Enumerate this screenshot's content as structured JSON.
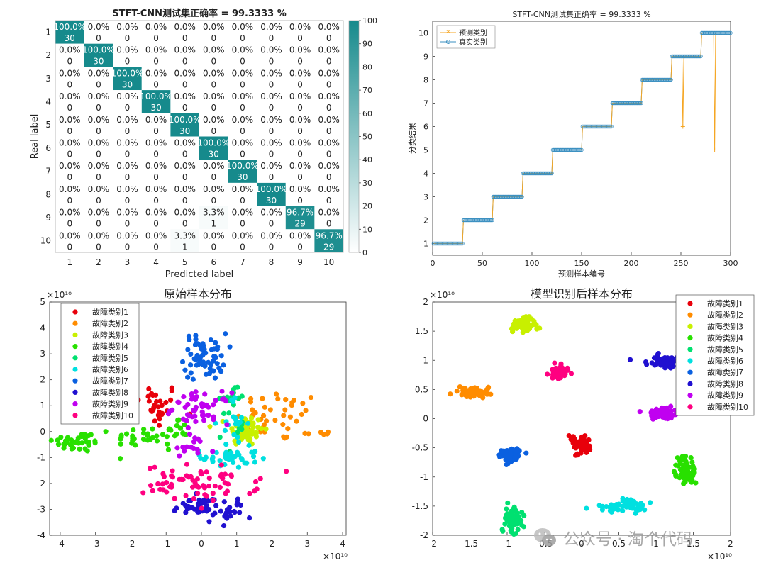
{
  "watermark": {
    "text": "公众号 · 淘个代码",
    "icon": "wechat-icon"
  },
  "chart_data": [
    {
      "type": "heatmap",
      "title": "STFT-CNN测试集正确率 = 99.3333 %",
      "xlabel": "Predicted label",
      "ylabel": "Real label",
      "categories": [
        "1",
        "2",
        "3",
        "4",
        "5",
        "6",
        "7",
        "8",
        "9",
        "10"
      ],
      "counts": [
        [
          30,
          0,
          0,
          0,
          0,
          0,
          0,
          0,
          0,
          0
        ],
        [
          0,
          30,
          0,
          0,
          0,
          0,
          0,
          0,
          0,
          0
        ],
        [
          0,
          0,
          30,
          0,
          0,
          0,
          0,
          0,
          0,
          0
        ],
        [
          0,
          0,
          0,
          30,
          0,
          0,
          0,
          0,
          0,
          0
        ],
        [
          0,
          0,
          0,
          0,
          30,
          0,
          0,
          0,
          0,
          0
        ],
        [
          0,
          0,
          0,
          0,
          0,
          30,
          0,
          0,
          0,
          0
        ],
        [
          0,
          0,
          0,
          0,
          0,
          0,
          30,
          0,
          0,
          0
        ],
        [
          0,
          0,
          0,
          0,
          0,
          0,
          0,
          30,
          0,
          0
        ],
        [
          0,
          0,
          0,
          0,
          0,
          1,
          0,
          0,
          29,
          0
        ],
        [
          0,
          0,
          0,
          0,
          1,
          0,
          0,
          0,
          0,
          29
        ]
      ],
      "percents": [
        [
          "100.0%",
          "0.0%",
          "0.0%",
          "0.0%",
          "0.0%",
          "0.0%",
          "0.0%",
          "0.0%",
          "0.0%",
          "0.0%"
        ],
        [
          "0.0%",
          "100.0%",
          "0.0%",
          "0.0%",
          "0.0%",
          "0.0%",
          "0.0%",
          "0.0%",
          "0.0%",
          "0.0%"
        ],
        [
          "0.0%",
          "0.0%",
          "100.0%",
          "0.0%",
          "0.0%",
          "0.0%",
          "0.0%",
          "0.0%",
          "0.0%",
          "0.0%"
        ],
        [
          "0.0%",
          "0.0%",
          "0.0%",
          "100.0%",
          "0.0%",
          "0.0%",
          "0.0%",
          "0.0%",
          "0.0%",
          "0.0%"
        ],
        [
          "0.0%",
          "0.0%",
          "0.0%",
          "0.0%",
          "100.0%",
          "0.0%",
          "0.0%",
          "0.0%",
          "0.0%",
          "0.0%"
        ],
        [
          "0.0%",
          "0.0%",
          "0.0%",
          "0.0%",
          "0.0%",
          "100.0%",
          "0.0%",
          "0.0%",
          "0.0%",
          "0.0%"
        ],
        [
          "0.0%",
          "0.0%",
          "0.0%",
          "0.0%",
          "0.0%",
          "0.0%",
          "100.0%",
          "0.0%",
          "0.0%",
          "0.0%"
        ],
        [
          "0.0%",
          "0.0%",
          "0.0%",
          "0.0%",
          "0.0%",
          "0.0%",
          "0.0%",
          "100.0%",
          "0.0%",
          "0.0%"
        ],
        [
          "0.0%",
          "0.0%",
          "0.0%",
          "0.0%",
          "0.0%",
          "3.3%",
          "0.0%",
          "0.0%",
          "96.7%",
          "0.0%"
        ],
        [
          "0.0%",
          "0.0%",
          "0.0%",
          "0.0%",
          "3.3%",
          "0.0%",
          "0.0%",
          "0.0%",
          "0.0%",
          "96.7%"
        ]
      ],
      "colorbar": {
        "min": 0,
        "max": 100,
        "ticks": [
          0,
          10,
          20,
          30,
          40,
          50,
          60,
          70,
          80,
          90,
          100
        ]
      },
      "color_high": "#168a8c",
      "color_low": "#ffffff"
    },
    {
      "type": "line",
      "title": "STFT-CNN测试集正确率 = 99.3333 %",
      "xlabel": "预测样本编号",
      "ylabel": "分类结果",
      "xlim": [
        0,
        300
      ],
      "ylim": [
        0.5,
        10.5
      ],
      "xticks": [
        0,
        50,
        100,
        150,
        200,
        250,
        300
      ],
      "yticks": [
        1,
        2,
        3,
        4,
        5,
        6,
        7,
        8,
        9,
        10
      ],
      "legend_position": "top-left",
      "series": [
        {
          "name": "预测类别",
          "color": "#f5a623",
          "marker": "*",
          "steps": [
            1,
            2,
            3,
            4,
            5,
            6,
            7,
            8,
            9,
            10
          ],
          "samples_per_class": 30,
          "errors": [
            {
              "x": 252,
              "y": 6
            },
            {
              "x": 284,
              "y": 5
            }
          ]
        },
        {
          "name": "真实类别",
          "color": "#3a8fc0",
          "marker": "o",
          "steps": [
            1,
            2,
            3,
            4,
            5,
            6,
            7,
            8,
            9,
            10
          ],
          "samples_per_class": 30
        }
      ]
    },
    {
      "type": "scatter",
      "title": "原始样本分布",
      "xlim": [
        -4.3,
        4.1
      ],
      "ylim": [
        -4,
        5
      ],
      "xticks": [
        -4,
        -3,
        -2,
        -1,
        0,
        1,
        2,
        3,
        4
      ],
      "yticks": [
        -4,
        -3,
        -2,
        -1,
        0,
        1,
        2,
        3,
        4,
        5
      ],
      "exponent": "×10¹⁰",
      "legend_position": "top-left",
      "series": [
        {
          "name": "故障类别1",
          "color": "#e8000b",
          "clusters": [
            {
              "cx": -1.3,
              "cy": 1.0,
              "sx": 0.35,
              "sy": 0.45,
              "n": 30
            }
          ]
        },
        {
          "name": "故障类别2",
          "color": "#ff8c00",
          "clusters": [
            {
              "cx": 2.2,
              "cy": 0.6,
              "sx": 0.6,
              "sy": 0.5,
              "n": 40
            },
            {
              "cx": 3.3,
              "cy": -0.05,
              "sx": 0.2,
              "sy": 0.05,
              "n": 6
            }
          ]
        },
        {
          "name": "故障类别3",
          "color": "#c8f000",
          "clusters": [
            {
              "cx": 1.25,
              "cy": 0.05,
              "sx": 0.25,
              "sy": 0.3,
              "n": 60
            }
          ]
        },
        {
          "name": "故障类别4",
          "color": "#28e000",
          "clusters": [
            {
              "cx": -3.5,
              "cy": -0.4,
              "sx": 0.35,
              "sy": 0.2,
              "n": 40
            },
            {
              "cx": -1.6,
              "cy": -0.2,
              "sx": 0.45,
              "sy": 0.2,
              "n": 30
            },
            {
              "cx": -0.7,
              "cy": 0.0,
              "sx": 0.15,
              "sy": 0.3,
              "n": 15
            }
          ]
        },
        {
          "name": "故障类别5",
          "color": "#00e070",
          "clusters": [
            {
              "cx": 0.8,
              "cy": 1.35,
              "sx": 0.25,
              "sy": 0.15,
              "n": 15
            },
            {
              "cx": 0.9,
              "cy": 0.2,
              "sx": 0.15,
              "sy": 0.5,
              "n": 10
            }
          ]
        },
        {
          "name": "故障类别6",
          "color": "#00e0e0",
          "clusters": [
            {
              "cx": 0.8,
              "cy": -1.0,
              "sx": 0.4,
              "sy": 0.2,
              "n": 40
            },
            {
              "cx": 0.9,
              "cy": 0.3,
              "sx": 0.2,
              "sy": 0.5,
              "n": 20
            }
          ]
        },
        {
          "name": "故障类别7",
          "color": "#0a60e0",
          "clusters": [
            {
              "cx": 0.1,
              "cy": 2.9,
              "sx": 0.3,
              "sy": 0.45,
              "n": 60
            }
          ]
        },
        {
          "name": "故障类别8",
          "color": "#2010d0",
          "clusters": [
            {
              "cx": -0.1,
              "cy": -2.9,
              "sx": 0.35,
              "sy": 0.2,
              "n": 40
            },
            {
              "cx": 0.8,
              "cy": -3.05,
              "sx": 0.2,
              "sy": 0.25,
              "n": 20
            }
          ]
        },
        {
          "name": "故障类别9",
          "color": "#c000f0",
          "clusters": [
            {
              "cx": 0.0,
              "cy": 0.9,
              "sx": 0.4,
              "sy": 0.3,
              "n": 50
            },
            {
              "cx": -0.3,
              "cy": -0.7,
              "sx": 0.35,
              "sy": 0.3,
              "n": 15
            }
          ]
        },
        {
          "name": "故障类别10",
          "color": "#ff0080",
          "clusters": [
            {
              "cx": 0.0,
              "cy": -2.0,
              "sx": 0.8,
              "sy": 0.35,
              "n": 70
            }
          ]
        }
      ]
    },
    {
      "type": "scatter",
      "title": "模型识别后样本分布",
      "xlim": [
        -2,
        2
      ],
      "ylim": [
        -2,
        2
      ],
      "xticks": [
        -2,
        -1.5,
        -1,
        -0.5,
        0,
        0.5,
        1,
        1.5,
        2
      ],
      "yticks": [
        -2,
        -1.5,
        -1,
        -0.5,
        0,
        0.5,
        1,
        1.5,
        2
      ],
      "exponent": "×10¹⁰",
      "legend_position": "top-right",
      "series": [
        {
          "name": "故障类别1",
          "color": "#e8000b",
          "clusters": [
            {
              "cx": -0.02,
              "cy": -0.45,
              "sx": 0.06,
              "sy": 0.08,
              "n": 60
            }
          ]
        },
        {
          "name": "故障类别2",
          "color": "#ff8c00",
          "clusters": [
            {
              "cx": -1.45,
              "cy": 0.45,
              "sx": 0.12,
              "sy": 0.04,
              "n": 60
            }
          ]
        },
        {
          "name": "故障类别3",
          "color": "#c8f000",
          "clusters": [
            {
              "cx": -0.8,
              "cy": 1.6,
              "sx": 0.08,
              "sy": 0.06,
              "n": 60
            }
          ]
        },
        {
          "name": "故障类别4",
          "color": "#28e000",
          "clusters": [
            {
              "cx": 1.38,
              "cy": -0.9,
              "sx": 0.08,
              "sy": 0.12,
              "n": 60
            }
          ]
        },
        {
          "name": "故障类别5",
          "color": "#00e070",
          "clusters": [
            {
              "cx": -0.9,
              "cy": -1.72,
              "sx": 0.07,
              "sy": 0.12,
              "n": 60
            }
          ]
        },
        {
          "name": "故障类别6",
          "color": "#00e0e0",
          "clusters": [
            {
              "cx": 0.55,
              "cy": -1.5,
              "sx": 0.17,
              "sy": 0.06,
              "n": 60
            }
          ]
        },
        {
          "name": "故障类别7",
          "color": "#0a60e0",
          "clusters": [
            {
              "cx": -0.95,
              "cy": -0.65,
              "sx": 0.07,
              "sy": 0.07,
              "n": 60
            }
          ]
        },
        {
          "name": "故障类别8",
          "color": "#2010d0",
          "clusters": [
            {
              "cx": 1.13,
              "cy": 0.98,
              "sx": 0.12,
              "sy": 0.05,
              "n": 60
            }
          ]
        },
        {
          "name": "故障类别9",
          "color": "#c000f0",
          "clusters": [
            {
              "cx": 1.07,
              "cy": 0.1,
              "sx": 0.1,
              "sy": 0.05,
              "n": 60
            }
          ]
        },
        {
          "name": "故障类别10",
          "color": "#ff0080",
          "clusters": [
            {
              "cx": -0.3,
              "cy": 0.8,
              "sx": 0.07,
              "sy": 0.05,
              "n": 60
            }
          ]
        }
      ]
    }
  ]
}
